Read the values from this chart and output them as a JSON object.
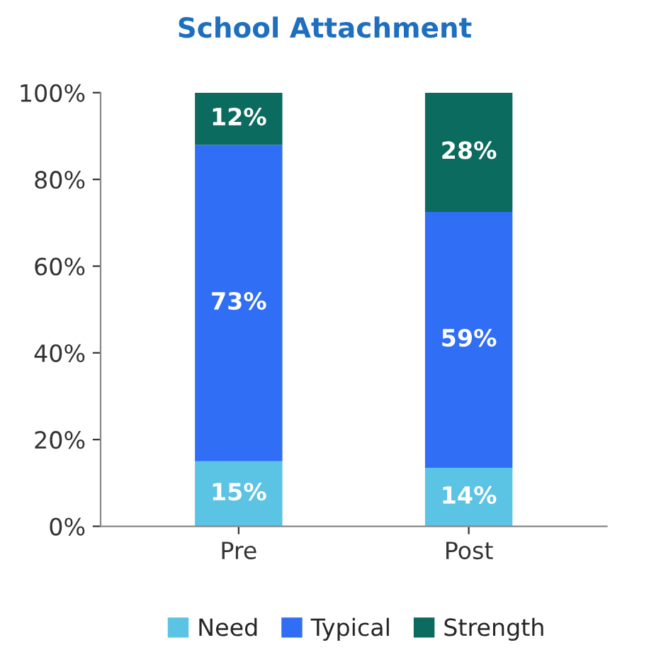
{
  "chart_data": {
    "type": "bar",
    "title": "School Attachment",
    "stacked": true,
    "categories": [
      "Pre",
      "Post"
    ],
    "series": [
      {
        "name": "Need",
        "color": "#5bc3e3",
        "values": [
          15,
          13.5
        ],
        "value_labels": [
          "15%",
          "14%"
        ]
      },
      {
        "name": "Typical",
        "color": "#2f6ef5",
        "values": [
          73,
          59
        ],
        "value_labels": [
          "73%",
          "59%"
        ]
      },
      {
        "name": "Strength",
        "color": "#0b6b5e",
        "values": [
          12,
          27.5
        ],
        "value_labels": [
          "12%",
          "28%"
        ]
      }
    ],
    "ylim": [
      0,
      100
    ],
    "yticks": [
      {
        "value": 0,
        "label": "0%"
      },
      {
        "value": 20,
        "label": "20%"
      },
      {
        "value": 40,
        "label": "40%"
      },
      {
        "value": 60,
        "label": "60%"
      },
      {
        "value": 80,
        "label": "80%"
      },
      {
        "value": 100,
        "label": "100%"
      }
    ],
    "grid": false,
    "legend": "bottom"
  }
}
